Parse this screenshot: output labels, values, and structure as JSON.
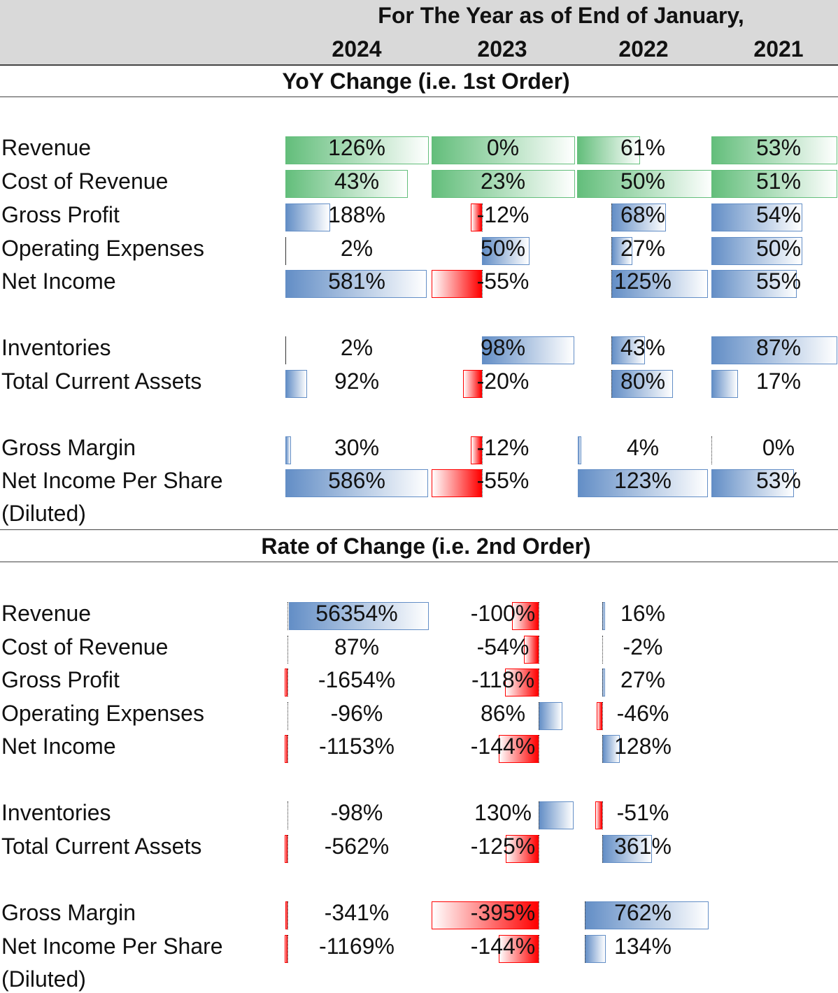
{
  "header": {
    "title": "For The Year as of End of January,",
    "years": [
      "2024",
      "2023",
      "2022",
      "2021"
    ]
  },
  "colors": {
    "green": "#63be7b",
    "blue": "#638ec6",
    "red": "#ff0000",
    "header_bg": "#d9d9d9"
  },
  "section1": {
    "title": "YoY Change (i.e. 1st Order)",
    "rows": [
      {
        "label": "Revenue",
        "style": "green",
        "values": [
          "126%",
          "0%",
          "61%",
          "53%"
        ],
        "numbers": [
          126,
          0,
          61,
          53
        ]
      },
      {
        "label": "Cost of Revenue",
        "style": "green",
        "values": [
          "43%",
          "23%",
          "50%",
          "51%"
        ],
        "numbers": [
          43,
          23,
          50,
          51
        ]
      },
      {
        "label": "Gross Profit",
        "style": "bar",
        "values": [
          "188%",
          "-12%",
          "68%",
          "54%"
        ],
        "numbers": [
          188,
          -12,
          68,
          54
        ]
      },
      {
        "label": "Operating Expenses",
        "style": "bar",
        "values": [
          "2%",
          "50%",
          "27%",
          "50%"
        ],
        "numbers": [
          2,
          50,
          27,
          50
        ]
      },
      {
        "label": "Net Income",
        "style": "bar",
        "values": [
          "581%",
          "-55%",
          "125%",
          "55%"
        ],
        "numbers": [
          581,
          -55,
          125,
          55
        ]
      },
      {
        "label": "Inventories",
        "style": "bar",
        "values": [
          "2%",
          "98%",
          "43%",
          "87%"
        ],
        "numbers": [
          2,
          98,
          43,
          87
        ]
      },
      {
        "label": "Total Current Assets",
        "style": "bar",
        "values": [
          "92%",
          "-20%",
          "80%",
          "17%"
        ],
        "numbers": [
          92,
          -20,
          80,
          17
        ]
      },
      {
        "label": "Gross Margin",
        "style": "bar",
        "values": [
          "30%",
          "-12%",
          "4%",
          "0%"
        ],
        "numbers": [
          30,
          -12,
          4,
          0
        ]
      },
      {
        "label": "Net Income Per Share",
        "label2": "(Diluted)",
        "style": "bar",
        "values": [
          "586%",
          "-55%",
          "123%",
          "53%"
        ],
        "numbers": [
          586,
          -55,
          123,
          53
        ]
      }
    ]
  },
  "section2": {
    "title": "Rate of Change (i.e. 2nd Order)",
    "rows": [
      {
        "label": "Revenue",
        "values": [
          "56354%",
          "-100%",
          "16%"
        ],
        "numbers": [
          56354,
          -100,
          16
        ]
      },
      {
        "label": "Cost of Revenue",
        "values": [
          "87%",
          "-54%",
          "-2%"
        ],
        "numbers": [
          87,
          -54,
          -2
        ]
      },
      {
        "label": "Gross Profit",
        "values": [
          "-1654%",
          "-118%",
          "27%"
        ],
        "numbers": [
          -1654,
          -118,
          27
        ]
      },
      {
        "label": "Operating Expenses",
        "values": [
          "-96%",
          "86%",
          "-46%"
        ],
        "numbers": [
          -96,
          86,
          -46
        ]
      },
      {
        "label": "Net Income",
        "values": [
          "-1153%",
          "-144%",
          "128%"
        ],
        "numbers": [
          -1153,
          -144,
          128
        ]
      },
      {
        "label": "Inventories",
        "values": [
          "-98%",
          "130%",
          "-51%"
        ],
        "numbers": [
          -98,
          130,
          -51
        ]
      },
      {
        "label": "Total Current Assets",
        "values": [
          "-562%",
          "-125%",
          "361%"
        ],
        "numbers": [
          -562,
          -125,
          361
        ]
      },
      {
        "label": "Gross Margin",
        "values": [
          "-341%",
          "-395%",
          "762%"
        ],
        "numbers": [
          -341,
          -395,
          762
        ]
      },
      {
        "label": "Net Income Per Share",
        "label2": "(Diluted)",
        "values": [
          "-1169%",
          "-144%",
          "134%"
        ],
        "numbers": [
          -1169,
          -144,
          134
        ]
      }
    ]
  }
}
